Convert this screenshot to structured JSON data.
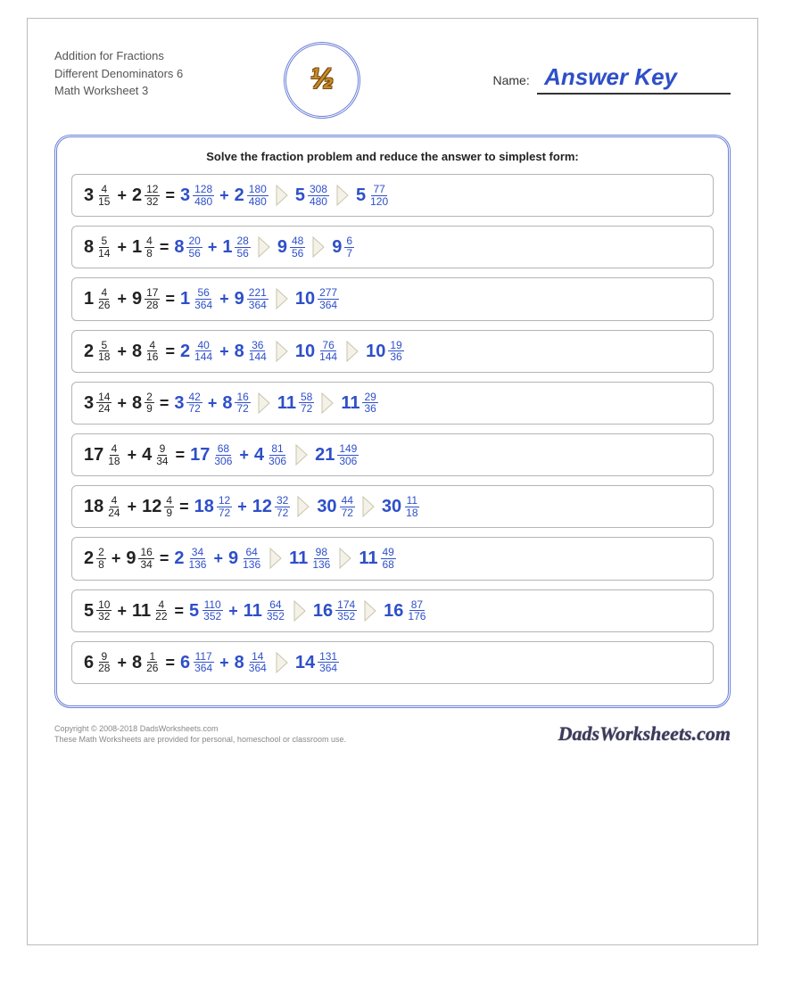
{
  "colors": {
    "question": "#222222",
    "answer": "#2e4fc9",
    "border": "#b5b5b5",
    "ring": "#6a7fd6",
    "arrow_fill": "#f4f2e8",
    "arrow_stroke": "#c9c5aa"
  },
  "header": {
    "line1": "Addition for Fractions",
    "line2": "Different Denominators 6",
    "line3": "Math Worksheet 3",
    "logo_text": "½",
    "name_label": "Name:",
    "answer_key": "Answer Key"
  },
  "instruction": "Solve the fraction problem and reduce the answer to simplest form:",
  "problems": [
    {
      "q": {
        "a": {
          "w": "3",
          "n": "4",
          "d": "15"
        },
        "b": {
          "w": "2",
          "n": "12",
          "d": "32"
        }
      },
      "steps": [
        {
          "type": "sum",
          "a": {
            "w": "3",
            "n": "128",
            "d": "480"
          },
          "b": {
            "w": "2",
            "n": "180",
            "d": "480"
          }
        },
        {
          "type": "one",
          "v": {
            "w": "5",
            "n": "308",
            "d": "480"
          }
        },
        {
          "type": "one",
          "v": {
            "w": "5",
            "n": "77",
            "d": "120"
          }
        }
      ]
    },
    {
      "q": {
        "a": {
          "w": "8",
          "n": "5",
          "d": "14"
        },
        "b": {
          "w": "1",
          "n": "4",
          "d": "8"
        }
      },
      "steps": [
        {
          "type": "sum",
          "a": {
            "w": "8",
            "n": "20",
            "d": "56"
          },
          "b": {
            "w": "1",
            "n": "28",
            "d": "56"
          }
        },
        {
          "type": "one",
          "v": {
            "w": "9",
            "n": "48",
            "d": "56"
          }
        },
        {
          "type": "one",
          "v": {
            "w": "9",
            "n": "6",
            "d": "7"
          }
        }
      ]
    },
    {
      "q": {
        "a": {
          "w": "1",
          "n": "4",
          "d": "26"
        },
        "b": {
          "w": "9",
          "n": "17",
          "d": "28"
        }
      },
      "steps": [
        {
          "type": "sum",
          "a": {
            "w": "1",
            "n": "56",
            "d": "364"
          },
          "b": {
            "w": "9",
            "n": "221",
            "d": "364"
          }
        },
        {
          "type": "one",
          "v": {
            "w": "10",
            "n": "277",
            "d": "364"
          }
        }
      ]
    },
    {
      "q": {
        "a": {
          "w": "2",
          "n": "5",
          "d": "18"
        },
        "b": {
          "w": "8",
          "n": "4",
          "d": "16"
        }
      },
      "steps": [
        {
          "type": "sum",
          "a": {
            "w": "2",
            "n": "40",
            "d": "144"
          },
          "b": {
            "w": "8",
            "n": "36",
            "d": "144"
          }
        },
        {
          "type": "one",
          "v": {
            "w": "10",
            "n": "76",
            "d": "144"
          }
        },
        {
          "type": "one",
          "v": {
            "w": "10",
            "n": "19",
            "d": "36"
          }
        }
      ]
    },
    {
      "q": {
        "a": {
          "w": "3",
          "n": "14",
          "d": "24"
        },
        "b": {
          "w": "8",
          "n": "2",
          "d": "9"
        }
      },
      "steps": [
        {
          "type": "sum",
          "a": {
            "w": "3",
            "n": "42",
            "d": "72"
          },
          "b": {
            "w": "8",
            "n": "16",
            "d": "72"
          }
        },
        {
          "type": "one",
          "v": {
            "w": "11",
            "n": "58",
            "d": "72"
          }
        },
        {
          "type": "one",
          "v": {
            "w": "11",
            "n": "29",
            "d": "36"
          }
        }
      ]
    },
    {
      "q": {
        "a": {
          "w": "17",
          "n": "4",
          "d": "18"
        },
        "b": {
          "w": "4",
          "n": "9",
          "d": "34"
        }
      },
      "steps": [
        {
          "type": "sum",
          "a": {
            "w": "17",
            "n": "68",
            "d": "306"
          },
          "b": {
            "w": "4",
            "n": "81",
            "d": "306"
          }
        },
        {
          "type": "one",
          "v": {
            "w": "21",
            "n": "149",
            "d": "306"
          }
        }
      ]
    },
    {
      "q": {
        "a": {
          "w": "18",
          "n": "4",
          "d": "24"
        },
        "b": {
          "w": "12",
          "n": "4",
          "d": "9"
        }
      },
      "steps": [
        {
          "type": "sum",
          "a": {
            "w": "18",
            "n": "12",
            "d": "72"
          },
          "b": {
            "w": "12",
            "n": "32",
            "d": "72"
          }
        },
        {
          "type": "one",
          "v": {
            "w": "30",
            "n": "44",
            "d": "72"
          }
        },
        {
          "type": "one",
          "v": {
            "w": "30",
            "n": "11",
            "d": "18"
          }
        }
      ]
    },
    {
      "q": {
        "a": {
          "w": "2",
          "n": "2",
          "d": "8"
        },
        "b": {
          "w": "9",
          "n": "16",
          "d": "34"
        }
      },
      "steps": [
        {
          "type": "sum",
          "a": {
            "w": "2",
            "n": "34",
            "d": "136"
          },
          "b": {
            "w": "9",
            "n": "64",
            "d": "136"
          }
        },
        {
          "type": "one",
          "v": {
            "w": "11",
            "n": "98",
            "d": "136"
          }
        },
        {
          "type": "one",
          "v": {
            "w": "11",
            "n": "49",
            "d": "68"
          }
        }
      ]
    },
    {
      "q": {
        "a": {
          "w": "5",
          "n": "10",
          "d": "32"
        },
        "b": {
          "w": "11",
          "n": "4",
          "d": "22"
        }
      },
      "steps": [
        {
          "type": "sum",
          "a": {
            "w": "5",
            "n": "110",
            "d": "352"
          },
          "b": {
            "w": "11",
            "n": "64",
            "d": "352"
          }
        },
        {
          "type": "one",
          "v": {
            "w": "16",
            "n": "174",
            "d": "352"
          }
        },
        {
          "type": "one",
          "v": {
            "w": "16",
            "n": "87",
            "d": "176"
          }
        }
      ]
    },
    {
      "q": {
        "a": {
          "w": "6",
          "n": "9",
          "d": "28"
        },
        "b": {
          "w": "8",
          "n": "1",
          "d": "26"
        }
      },
      "steps": [
        {
          "type": "sum",
          "a": {
            "w": "6",
            "n": "117",
            "d": "364"
          },
          "b": {
            "w": "8",
            "n": "14",
            "d": "364"
          }
        },
        {
          "type": "one",
          "v": {
            "w": "14",
            "n": "131",
            "d": "364"
          }
        }
      ]
    }
  ],
  "footer": {
    "copyright": "Copyright © 2008-2018 DadsWorksheets.com",
    "note": "These Math Worksheets are provided for personal, homeschool or classroom use.",
    "brand": "DadsWorksheets.com"
  }
}
